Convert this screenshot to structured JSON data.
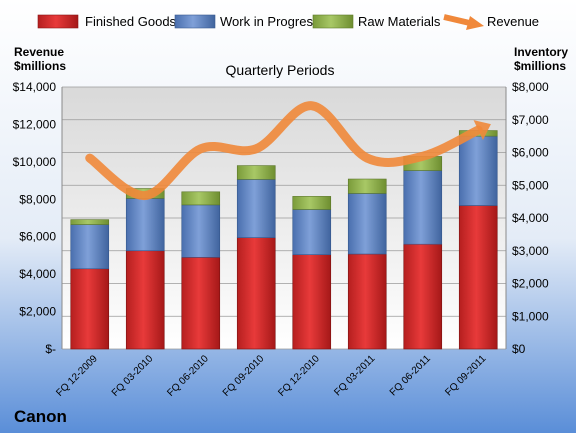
{
  "chart_data": {
    "type": "bar",
    "stacked": true,
    "title": "Quarterly Periods",
    "company": "Canon",
    "left_axis_label": [
      "Revenue",
      "$millions"
    ],
    "right_axis_label": [
      "Inventory",
      "$millions"
    ],
    "left_ticks": [
      "$-",
      "$2,000",
      "$4,000",
      "$6,000",
      "$8,000",
      "$10,000",
      "$12,000",
      "$14,000"
    ],
    "right_ticks": [
      "$0",
      "$1,000",
      "$2,000",
      "$3,000",
      "$4,000",
      "$5,000",
      "$6,000",
      "$7,000",
      "$8,000"
    ],
    "left_ylim": [
      0,
      14000
    ],
    "right_ylim": [
      0,
      8000
    ],
    "categories": [
      "FQ 12-2009",
      "FQ 03-2010",
      "FQ 06-2010",
      "FQ 09-2010",
      "FQ 12-2010",
      "FQ 03-2011",
      "FQ 06-2011",
      "FQ 09-2011"
    ],
    "series": [
      {
        "name": "Finished Goods",
        "axis": "right",
        "color": "#e03030",
        "values": [
          2450,
          3000,
          2800,
          3400,
          2880,
          2900,
          3200,
          4380
        ]
      },
      {
        "name": "Work in Progress",
        "axis": "right",
        "color": "#6b8fcf",
        "values": [
          1350,
          1600,
          1600,
          1780,
          1380,
          1850,
          2250,
          2120
        ]
      },
      {
        "name": "Raw Materials",
        "axis": "right",
        "color": "#9bbb59",
        "values": [
          150,
          300,
          400,
          420,
          400,
          440,
          430,
          170
        ]
      },
      {
        "name": "Revenue",
        "axis": "left",
        "type": "line",
        "color": "#f0883a",
        "values": [
          10200,
          8200,
          10700,
          10700,
          13000,
          10200,
          10300,
          11700
        ]
      }
    ],
    "legend_position": "top",
    "grid": true
  }
}
